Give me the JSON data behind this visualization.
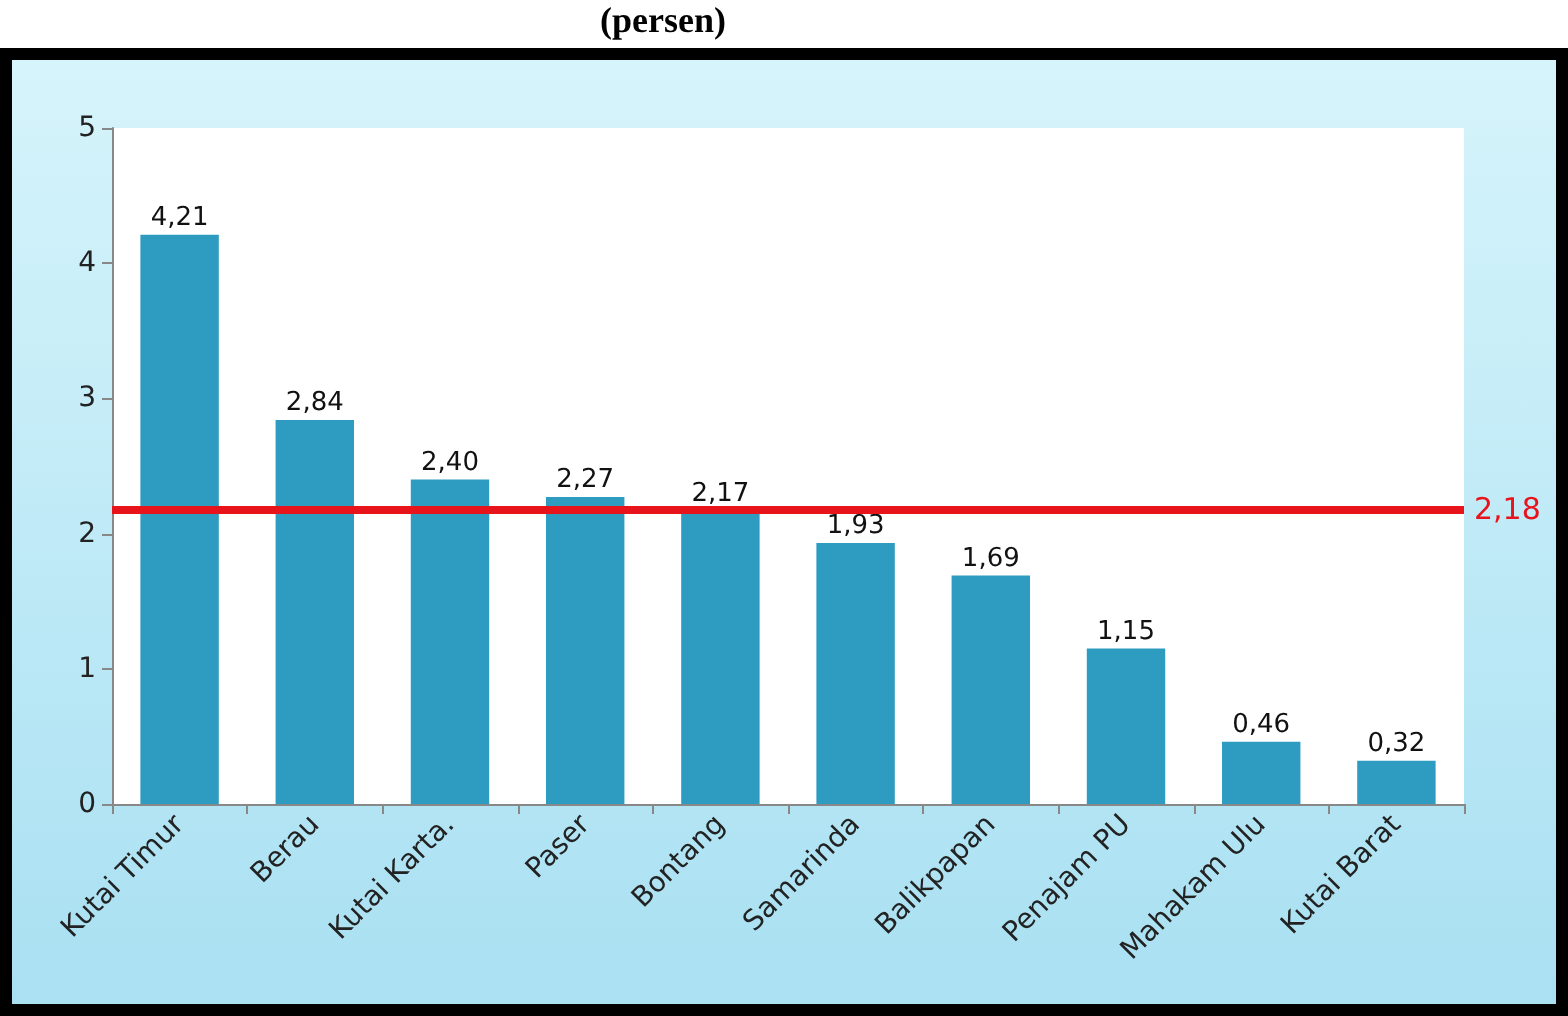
{
  "chart_data": {
    "type": "bar",
    "title": "(persen)",
    "categories": [
      "Kutai Timur",
      "Berau",
      "Kutai Karta.",
      "Paser",
      "Bontang",
      "Samarinda",
      "Balikpapan",
      "Penajam PU",
      "Mahakam Ulu",
      "Kutai Barat"
    ],
    "values": [
      4.21,
      2.84,
      2.4,
      2.27,
      2.17,
      1.93,
      1.69,
      1.15,
      0.46,
      0.32
    ],
    "value_labels": [
      "4,21",
      "2,84",
      "2,40",
      "2,27",
      "2,17",
      "1,93",
      "1,69",
      "1,15",
      "0,46",
      "0,32"
    ],
    "color": "#2e9cc0",
    "ylim": [
      0,
      5
    ],
    "yticks": [
      0,
      1,
      2,
      3,
      4,
      5
    ],
    "grid": false,
    "ref_lines": [
      {
        "axis": "y",
        "value": 2.18,
        "label": "2,18",
        "color": "#e8141c"
      }
    ]
  }
}
